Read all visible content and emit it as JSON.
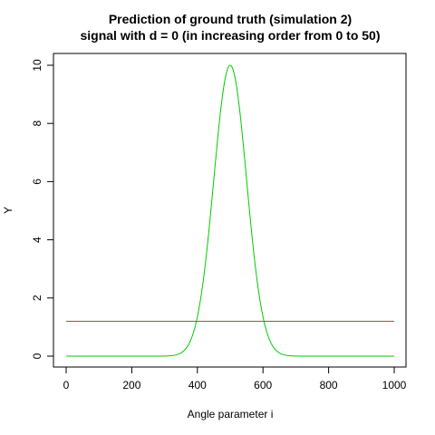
{
  "chart_data": {
    "type": "line",
    "title": "Prediction of ground truth (simulation 2)",
    "subtitle": "signal with d = 0  (in increasing order from 0 to 50)",
    "xlabel": "Angle parameter i",
    "ylabel": "Y",
    "xlim": [
      0,
      1000
    ],
    "ylim": [
      0,
      10
    ],
    "x_ticks": [
      0,
      200,
      400,
      600,
      800,
      1000
    ],
    "y_ticks": [
      0,
      2,
      4,
      6,
      8,
      10
    ],
    "grid": false,
    "series": [
      {
        "color": "#00cc00",
        "shape": "gaussian",
        "peak_x": 500,
        "peak_y": 10,
        "sigma": 50,
        "x_range": [
          0,
          1000
        ]
      },
      {
        "color": "#a05050",
        "shape": "constant",
        "y": 1.2,
        "x_range": [
          0,
          1000
        ]
      }
    ]
  }
}
